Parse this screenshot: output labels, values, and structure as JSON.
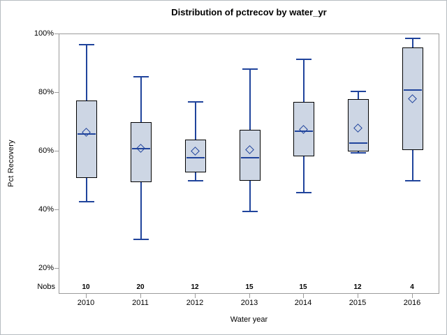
{
  "title": "Distribution of pctrecov by water_yr",
  "chart_data": {
    "type": "boxplot",
    "title": "Distribution of pctrecov by water_yr",
    "xlabel": "Water year",
    "ylabel": "Pct Recovery",
    "nobs_label": "Nobs",
    "legend": "none",
    "grid": false,
    "categories": [
      "2010",
      "2011",
      "2012",
      "2013",
      "2014",
      "2015",
      "2016"
    ],
    "nobs": [
      10,
      20,
      12,
      15,
      15,
      12,
      4
    ],
    "y_axis": {
      "max": 100,
      "tick_interval": 20,
      "ticks": [
        {
          "value": 100,
          "label": "100%"
        },
        {
          "value": 80,
          "label": "80%"
        },
        {
          "value": 60,
          "label": "60%"
        },
        {
          "value": 40,
          "label": "40%"
        },
        {
          "value": 20,
          "label": "20%"
        }
      ]
    },
    "series": [
      {
        "category": "2010",
        "n": 10,
        "whisker_low": 43,
        "q1": 51,
        "median": 66,
        "mean": 66.5,
        "q3": 77.5,
        "whisker_high": 96.5
      },
      {
        "category": "2011",
        "n": 20,
        "whisker_low": 30,
        "q1": 49.5,
        "median": 61,
        "mean": 61,
        "q3": 70,
        "whisker_high": 85.5
      },
      {
        "category": "2012",
        "n": 12,
        "whisker_low": 50,
        "q1": 53,
        "median": 58,
        "mean": 60,
        "q3": 64,
        "whisker_high": 77
      },
      {
        "category": "2013",
        "n": 15,
        "whisker_low": 39.5,
        "q1": 50,
        "median": 58,
        "mean": 60.5,
        "q3": 67.5,
        "whisker_high": 88
      },
      {
        "category": "2014",
        "n": 15,
        "whisker_low": 46,
        "q1": 58.5,
        "median": 67,
        "mean": 67.5,
        "q3": 77,
        "whisker_high": 91.5
      },
      {
        "category": "2015",
        "n": 12,
        "whisker_low": 59.5,
        "q1": 60,
        "median": 63,
        "mean": 68,
        "q3": 78,
        "whisker_high": 80.5
      },
      {
        "category": "2016",
        "n": 4,
        "whisker_low": 50,
        "q1": 60.5,
        "median": 81,
        "mean": 78,
        "q3": 95.5,
        "whisker_high": 98.5
      }
    ],
    "colors": {
      "box_fill": "#cdd6e4",
      "box_border": "#000000",
      "line_blue": "#20449c",
      "frame_gray": "#9b9b9b",
      "text": "#000000"
    }
  }
}
